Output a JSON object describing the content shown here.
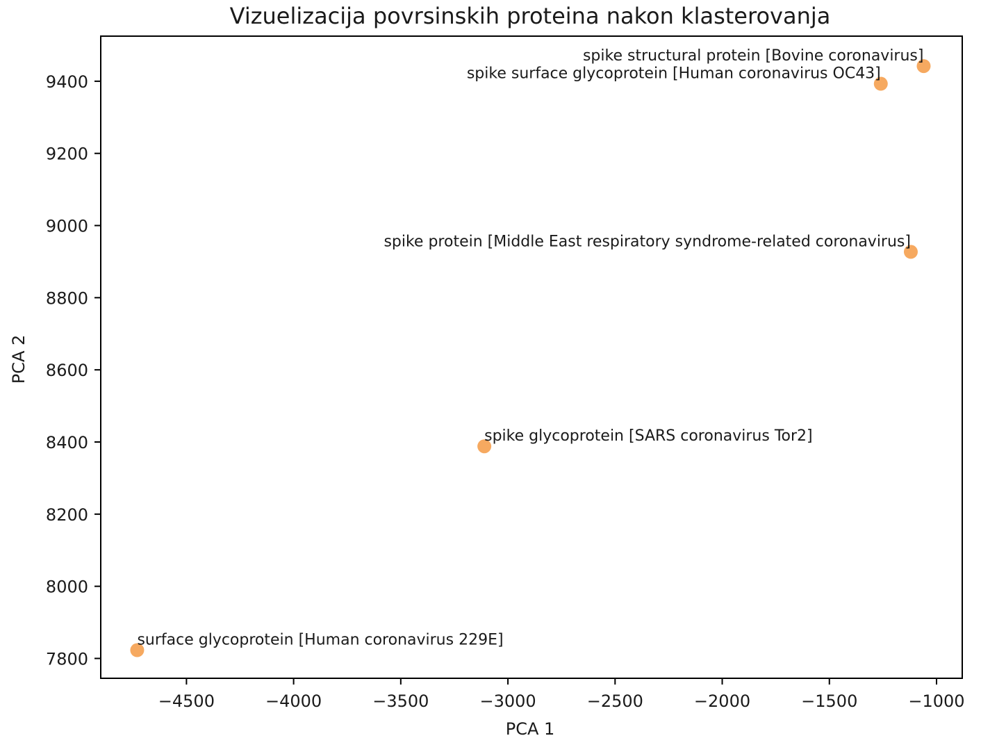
{
  "chart_data": {
    "type": "scatter",
    "title": "Vizuelizacija povrsinskih proteina nakon klasterovanja",
    "xlabel": "PCA 1",
    "ylabel": "PCA 2",
    "xlim": [
      -4900,
      -880
    ],
    "ylim": [
      7745,
      9525
    ],
    "xticks": [
      -4500,
      -4000,
      -3500,
      -3000,
      -2500,
      -2000,
      -1500,
      -1000
    ],
    "xtick_labels": [
      "−4500",
      "−4000",
      "−3500",
      "−3000",
      "−2500",
      "−2000",
      "−1500",
      "−1000"
    ],
    "yticks": [
      7800,
      8000,
      8200,
      8400,
      8600,
      8800,
      9000,
      9200,
      9400
    ],
    "ytick_labels": [
      "7800",
      "8000",
      "8200",
      "8400",
      "8600",
      "8800",
      "9000",
      "9200",
      "9400"
    ],
    "grid": false,
    "marker_color": "#f5a04f",
    "points": [
      {
        "x": -1060,
        "y": 9442,
        "label": "spike structural protein [Bovine coronavirus]",
        "label_side": "left"
      },
      {
        "x": -1260,
        "y": 9393,
        "label": "spike surface glycoprotein [Human coronavirus OC43]",
        "label_side": "left"
      },
      {
        "x": -1120,
        "y": 8927,
        "label": "spike protein [Middle East respiratory syndrome-related coronavirus]",
        "label_side": "left"
      },
      {
        "x": -3110,
        "y": 8388,
        "label": "spike glycoprotein [SARS coronavirus Tor2]",
        "label_side": "right"
      },
      {
        "x": -4730,
        "y": 7823,
        "label": "surface glycoprotein [Human coronavirus 229E]",
        "label_side": "right"
      }
    ]
  }
}
